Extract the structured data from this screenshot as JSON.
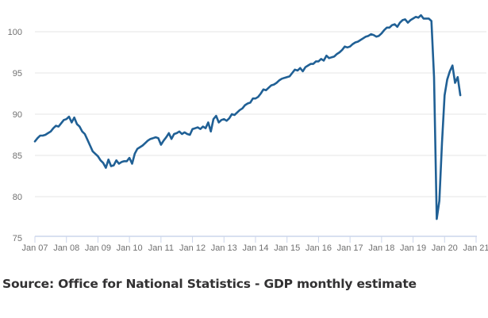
{
  "source_text": "Source: Office for National Statistics - GDP monthly estimate",
  "colors": {
    "line": "#206095",
    "grid": "#e6e6e6",
    "axis": "#ccd6eb",
    "tick_text": "#707070"
  },
  "chart_data": {
    "type": "line",
    "title": "",
    "xlabel": "",
    "ylabel": "",
    "ylim": [
      75,
      102
    ],
    "yticks": [
      75,
      80,
      85,
      90,
      95,
      100
    ],
    "ytick_labels": [
      "75",
      "80",
      "85",
      "90",
      "95",
      "100"
    ],
    "xtick_labels": [
      "Jan 07",
      "Jan 08",
      "Jan 09",
      "Jan 10",
      "Jan 11",
      "Jan 12",
      "Jan 13",
      "Jan 14",
      "Jan 15",
      "Jan 16",
      "Jan 17",
      "Jan 18",
      "Jan 19",
      "Jan 20",
      "Jan 21"
    ],
    "x_start": "Jan 2007",
    "x_frequency": "monthly",
    "grid": true,
    "legend": "none",
    "series": [
      {
        "name": "GDP monthly index",
        "values": [
          86.7,
          87.1,
          87.4,
          87.4,
          87.5,
          87.7,
          87.9,
          88.3,
          88.6,
          88.5,
          88.9,
          89.3,
          89.4,
          89.7,
          89.0,
          89.6,
          88.8,
          88.5,
          87.9,
          87.6,
          86.9,
          86.2,
          85.5,
          85.2,
          84.9,
          84.4,
          84.1,
          83.5,
          84.5,
          83.7,
          83.8,
          84.4,
          84.0,
          84.2,
          84.3,
          84.3,
          84.7,
          84.0,
          85.2,
          85.8,
          86.0,
          86.2,
          86.5,
          86.8,
          87.0,
          87.1,
          87.2,
          87.1,
          86.3,
          86.8,
          87.2,
          87.7,
          87.0,
          87.6,
          87.7,
          87.9,
          87.6,
          87.8,
          87.6,
          87.5,
          88.2,
          88.3,
          88.4,
          88.2,
          88.5,
          88.3,
          89.0,
          87.9,
          89.4,
          89.8,
          89.0,
          89.3,
          89.4,
          89.2,
          89.5,
          90.0,
          89.9,
          90.2,
          90.5,
          90.7,
          91.1,
          91.3,
          91.4,
          91.9,
          91.9,
          92.1,
          92.5,
          93.0,
          92.9,
          93.2,
          93.5,
          93.6,
          93.8,
          94.1,
          94.3,
          94.4,
          94.5,
          94.6,
          95.0,
          95.4,
          95.3,
          95.6,
          95.2,
          95.7,
          95.9,
          96.1,
          96.1,
          96.4,
          96.4,
          96.7,
          96.5,
          97.1,
          96.8,
          96.9,
          97.0,
          97.3,
          97.5,
          97.8,
          98.2,
          98.1,
          98.2,
          98.5,
          98.7,
          98.8,
          99.0,
          99.2,
          99.4,
          99.5,
          99.7,
          99.6,
          99.4,
          99.5,
          99.8,
          100.2,
          100.5,
          100.5,
          100.8,
          100.9,
          100.6,
          101.1,
          101.4,
          101.5,
          101.1,
          101.4,
          101.6,
          101.8,
          101.7,
          102.0,
          101.6,
          101.6,
          101.6,
          101.3,
          94.5,
          77.3,
          79.5,
          86.5,
          92.3,
          94.2,
          95.2,
          95.9,
          93.8,
          94.5,
          92.3
        ]
      }
    ]
  }
}
